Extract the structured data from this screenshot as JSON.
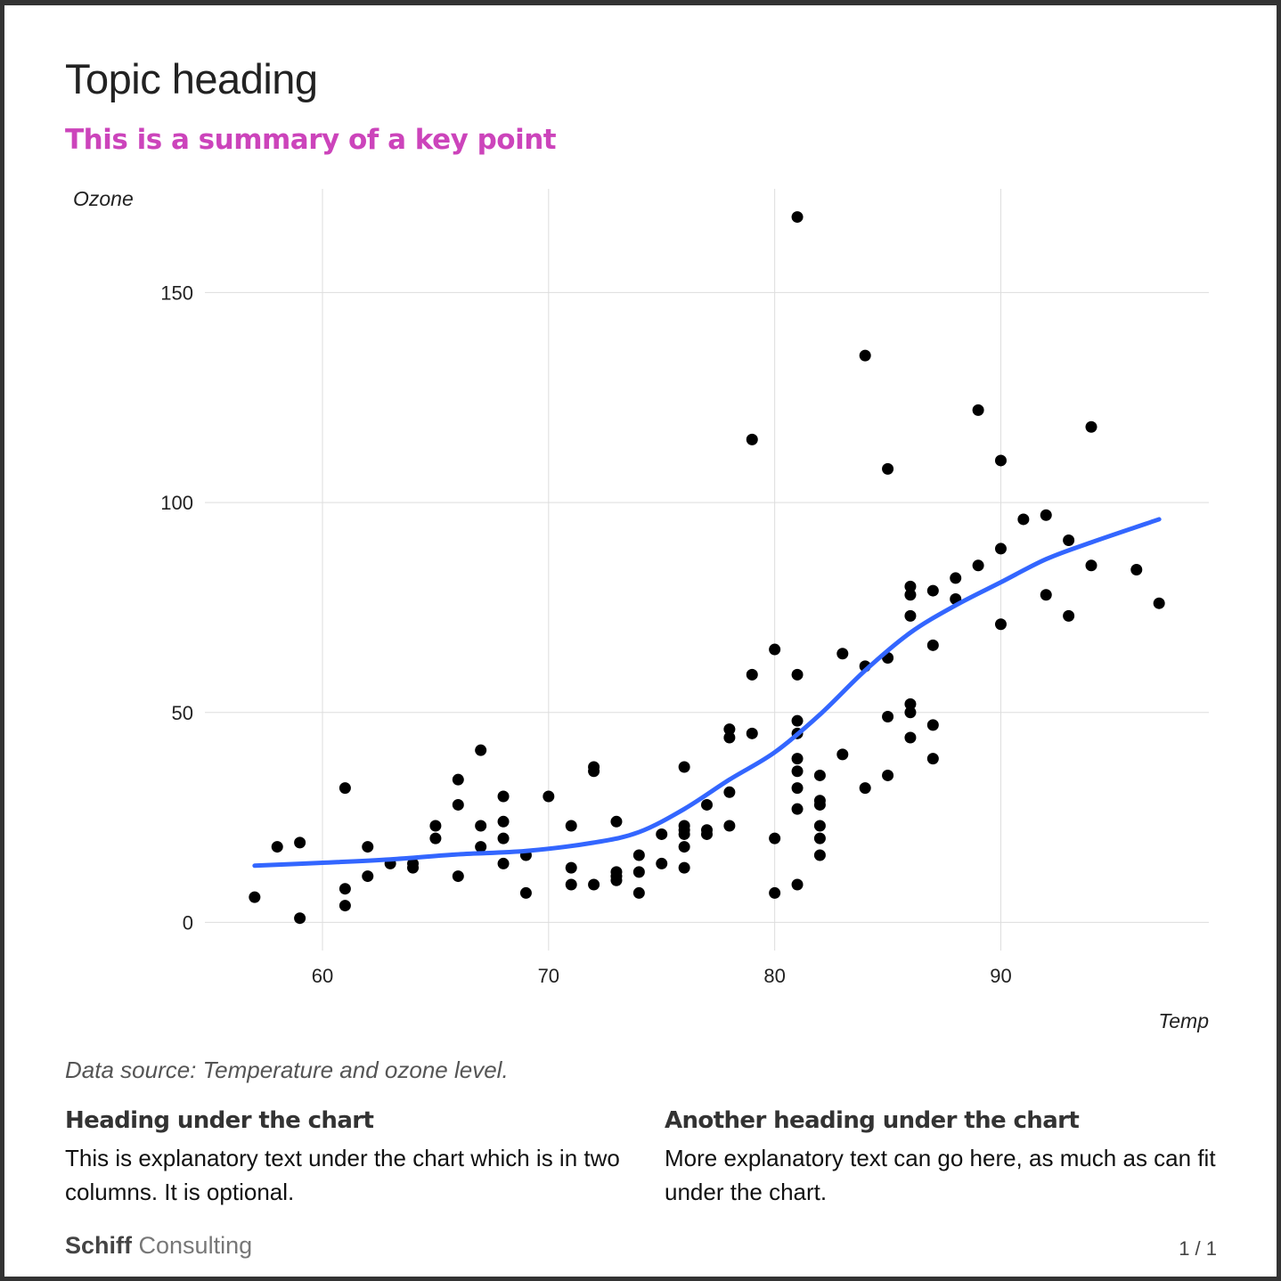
{
  "header": {
    "topic_heading": "Topic heading",
    "summary": "This is a summary of a key point",
    "summary_color": "#cc44bb"
  },
  "chart_data": {
    "type": "scatter",
    "title": "",
    "xlabel": "Temp",
    "ylabel": "Ozone",
    "xlim": [
      54.8,
      99.2
    ],
    "ylim": [
      -6.7,
      174.7
    ],
    "x_ticks": [
      60,
      70,
      80,
      90
    ],
    "y_ticks": [
      0,
      50,
      100,
      150
    ],
    "grid": true,
    "point_color": "#000000",
    "smooth_color": "#3366ff",
    "points": [
      [
        57,
        6
      ],
      [
        58,
        18
      ],
      [
        59,
        1
      ],
      [
        59,
        19
      ],
      [
        61,
        32
      ],
      [
        61,
        8
      ],
      [
        61,
        4
      ],
      [
        62,
        18
      ],
      [
        62,
        11
      ],
      [
        63,
        14
      ],
      [
        64,
        14
      ],
      [
        64,
        13
      ],
      [
        65,
        23
      ],
      [
        65,
        20
      ],
      [
        66,
        34
      ],
      [
        66,
        28
      ],
      [
        66,
        11
      ],
      [
        67,
        41
      ],
      [
        67,
        23
      ],
      [
        67,
        18
      ],
      [
        68,
        30
      ],
      [
        68,
        24
      ],
      [
        68,
        20
      ],
      [
        68,
        14
      ],
      [
        69,
        16
      ],
      [
        69,
        7
      ],
      [
        70,
        30
      ],
      [
        71,
        23
      ],
      [
        71,
        13
      ],
      [
        71,
        9
      ],
      [
        72,
        37
      ],
      [
        72,
        36
      ],
      [
        72,
        9
      ],
      [
        73,
        24
      ],
      [
        73,
        12
      ],
      [
        73,
        11
      ],
      [
        73,
        10
      ],
      [
        74,
        16
      ],
      [
        74,
        12
      ],
      [
        74,
        7
      ],
      [
        75,
        21
      ],
      [
        75,
        14
      ],
      [
        76,
        37
      ],
      [
        76,
        23
      ],
      [
        76,
        22
      ],
      [
        76,
        21
      ],
      [
        76,
        18
      ],
      [
        76,
        13
      ],
      [
        77,
        28
      ],
      [
        77,
        22
      ],
      [
        77,
        21
      ],
      [
        78,
        46
      ],
      [
        78,
        44
      ],
      [
        78,
        31
      ],
      [
        78,
        23
      ],
      [
        79,
        115
      ],
      [
        79,
        59
      ],
      [
        79,
        45
      ],
      [
        80,
        65
      ],
      [
        80,
        20
      ],
      [
        80,
        7
      ],
      [
        81,
        168
      ],
      [
        81,
        59
      ],
      [
        81,
        48
      ],
      [
        81,
        45
      ],
      [
        81,
        39
      ],
      [
        81,
        36
      ],
      [
        81,
        32
      ],
      [
        81,
        27
      ],
      [
        81,
        9
      ],
      [
        82,
        35
      ],
      [
        82,
        29
      ],
      [
        82,
        28
      ],
      [
        82,
        23
      ],
      [
        82,
        20
      ],
      [
        82,
        16
      ],
      [
        83,
        64
      ],
      [
        83,
        40
      ],
      [
        84,
        135
      ],
      [
        84,
        61
      ],
      [
        84,
        32
      ],
      [
        85,
        108
      ],
      [
        85,
        63
      ],
      [
        85,
        49
      ],
      [
        85,
        35
      ],
      [
        86,
        80
      ],
      [
        86,
        78
      ],
      [
        86,
        73
      ],
      [
        86,
        52
      ],
      [
        86,
        50
      ],
      [
        86,
        44
      ],
      [
        87,
        79
      ],
      [
        87,
        66
      ],
      [
        87,
        47
      ],
      [
        87,
        39
      ],
      [
        88,
        82
      ],
      [
        88,
        77
      ],
      [
        89,
        122
      ],
      [
        89,
        85
      ],
      [
        90,
        110
      ],
      [
        90,
        89
      ],
      [
        90,
        71
      ],
      [
        91,
        96
      ],
      [
        92,
        97
      ],
      [
        92,
        78
      ],
      [
        93,
        91
      ],
      [
        93,
        73
      ],
      [
        94,
        118
      ],
      [
        94,
        85
      ],
      [
        96,
        84
      ],
      [
        97,
        76
      ]
    ],
    "smooth_line": [
      [
        57,
        13.5
      ],
      [
        60,
        14.2
      ],
      [
        63,
        15.0
      ],
      [
        66,
        16.2
      ],
      [
        69,
        17.0
      ],
      [
        72,
        19.0
      ],
      [
        74,
        21.5
      ],
      [
        76,
        27
      ],
      [
        78,
        34
      ],
      [
        80,
        40.5
      ],
      [
        82,
        49.5
      ],
      [
        84,
        60
      ],
      [
        86,
        69
      ],
      [
        88,
        75.5
      ],
      [
        90,
        81
      ],
      [
        92,
        86.5
      ],
      [
        94,
        90.5
      ],
      [
        97,
        96
      ]
    ]
  },
  "footer": {
    "source": "Data source: Temperature and ozone level.",
    "col1_heading": "Heading under the chart",
    "col1_text": "This is explanatory text under the chart which is in two columns. It is optional.",
    "col2_heading": "Another heading under the chart",
    "col2_text": "More explanatory text can go here, as much as can fit under the chart.",
    "brand_bold": "Schiff",
    "brand_light": "Consulting",
    "page": "1 / 1"
  }
}
